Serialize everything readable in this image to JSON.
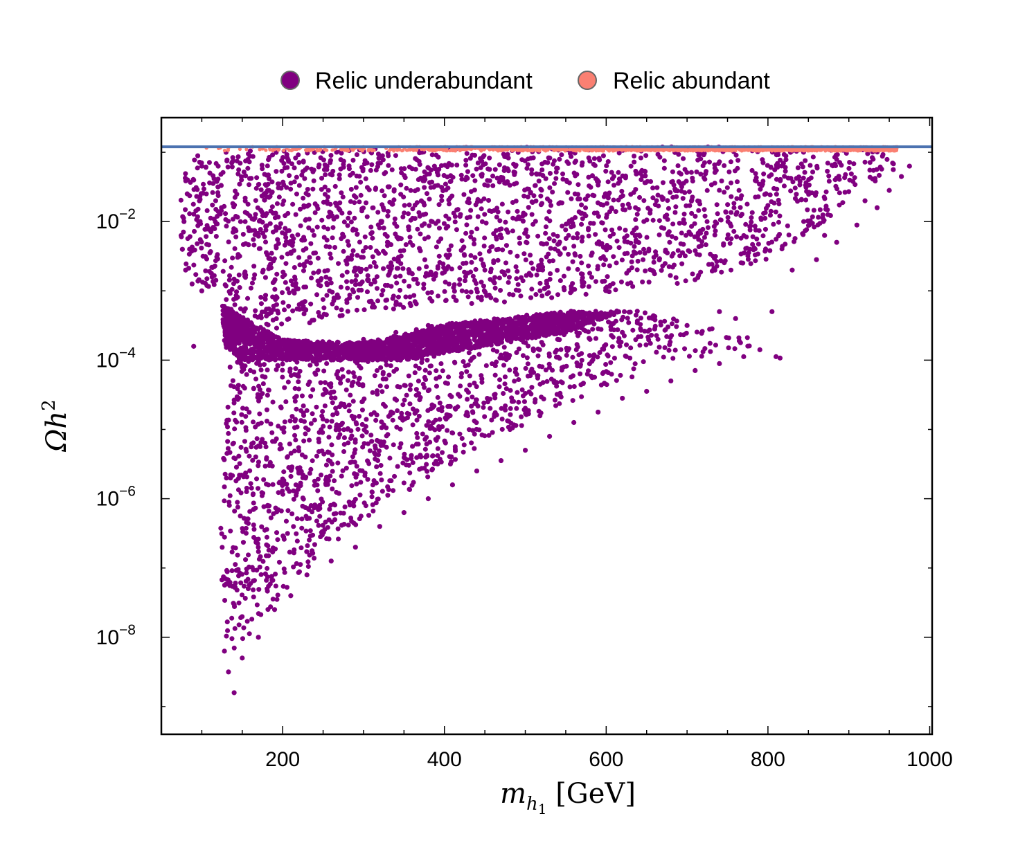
{
  "chart_data": {
    "type": "scatter",
    "xlabel": "m_{h_1} [GeV]",
    "ylabel": "Ωh^2",
    "xlim": [
      50,
      1003
    ],
    "ylim_log10": [
      -9.4,
      -0.5
    ],
    "y_scale": "log",
    "x_ticks": [
      200,
      400,
      600,
      800,
      1000
    ],
    "x_tick_labels": [
      "200",
      "400",
      "600",
      "800",
      "1000"
    ],
    "y_ticks_log10": [
      -8,
      -6,
      -4,
      -2
    ],
    "y_tick_labels": [
      {
        "base": "10",
        "exp": "−8"
      },
      {
        "base": "10",
        "exp": "−6"
      },
      {
        "base": "10",
        "exp": "−4"
      },
      {
        "base": "10",
        "exp": "−2"
      }
    ],
    "reference_line": {
      "y": 0.12,
      "color": "#4c72b0"
    },
    "legend": {
      "placement": "top-center",
      "entries": [
        {
          "label": "Relic underabundant",
          "color": "#800080"
        },
        {
          "label": "Relic abundant",
          "color": "#fa8072"
        }
      ]
    },
    "series": [
      {
        "name": "Relic underabundant",
        "color": "#800080",
        "regions": [
          {
            "desc": "main-band",
            "poly": [
              [
                75,
                -1.2
              ],
              [
                100,
                -1.05
              ],
              [
                200,
                -0.97
              ],
              [
                400,
                -0.93
              ],
              [
                600,
                -0.92
              ],
              [
                800,
                -0.92
              ],
              [
                950,
                -0.95
              ],
              [
                965,
                -1.1
              ],
              [
                940,
                -1.35
              ],
              [
                900,
                -1.7
              ],
              [
                860,
                -2.1
              ],
              [
                800,
                -2.55
              ],
              [
                700,
                -2.9
              ],
              [
                600,
                -3.05
              ],
              [
                500,
                -3.15
              ],
              [
                400,
                -3.2
              ],
              [
                300,
                -3.3
              ],
              [
                200,
                -3.55
              ],
              [
                150,
                -3.9
              ],
              [
                135,
                -4.2
              ],
              [
                128,
                -4.8
              ],
              [
                124,
                -5.5
              ],
              [
                123,
                -6.3
              ],
              [
                124,
                -7.2
              ],
              [
                127,
                -7.8
              ],
              [
                133,
                -8.2
              ],
              [
                145,
                -8.15
              ],
              [
                165,
                -7.9
              ],
              [
                200,
                -7.4
              ],
              [
                240,
                -6.9
              ],
              [
                300,
                -6.3
              ],
              [
                380,
                -5.7
              ],
              [
                460,
                -5.15
              ],
              [
                540,
                -4.7
              ],
              [
                620,
                -4.3
              ],
              [
                700,
                -4.0
              ],
              [
                760,
                -3.85
              ],
              [
                800,
                -3.8
              ],
              [
                760,
                -3.6
              ],
              [
                690,
                -3.4
              ],
              [
                620,
                -3.25
              ],
              [
                540,
                -3.3
              ],
              [
                460,
                -3.4
              ],
              [
                380,
                -3.5
              ],
              [
                300,
                -3.8
              ],
              [
                250,
                -3.9
              ],
              [
                200,
                -3.95
              ],
              [
                160,
                -3.95
              ],
              [
                130,
                -3.6
              ],
              [
                125,
                -3.0
              ],
              [
                122,
                -2.95
              ],
              [
                105,
                -2.95
              ],
              [
                90,
                -2.85
              ],
              [
                78,
                -2.6
              ],
              [
                74,
                -2.2
              ],
              [
                72,
                -1.6
              ]
            ]
          },
          {
            "desc": "gap-fill",
            "poly": [
              [
                125,
                -3.2
              ],
              [
                200,
                -3.7
              ],
              [
                300,
                -3.75
              ],
              [
                420,
                -3.45
              ],
              [
                550,
                -3.3
              ],
              [
                620,
                -3.3
              ],
              [
                550,
                -3.6
              ],
              [
                450,
                -3.8
              ],
              [
                350,
                -4.0
              ],
              [
                250,
                -4.0
              ],
              [
                150,
                -4.0
              ],
              [
                128,
                -3.8
              ]
            ]
          }
        ],
        "outliers": [
          [
            140,
            -8.8
          ],
          [
            133,
            -8.5
          ],
          [
            128,
            -8.2
          ],
          [
            150,
            -8.3
          ],
          [
            170,
            -8.0
          ],
          [
            190,
            -7.6
          ],
          [
            210,
            -7.4
          ],
          [
            230,
            -7.1
          ],
          [
            260,
            -6.9
          ],
          [
            290,
            -6.7
          ],
          [
            320,
            -6.4
          ],
          [
            350,
            -6.2
          ],
          [
            380,
            -6.0
          ],
          [
            410,
            -5.8
          ],
          [
            440,
            -5.6
          ],
          [
            470,
            -5.45
          ],
          [
            500,
            -5.3
          ],
          [
            530,
            -5.1
          ],
          [
            560,
            -4.9
          ],
          [
            590,
            -4.75
          ],
          [
            620,
            -4.55
          ],
          [
            650,
            -4.45
          ],
          [
            680,
            -4.3
          ],
          [
            710,
            -4.15
          ],
          [
            740,
            -4.05
          ],
          [
            770,
            -3.95
          ],
          [
            790,
            -3.85
          ],
          [
            810,
            -3.95
          ],
          [
            815,
            -3.97
          ],
          [
            805,
            -3.3
          ],
          [
            760,
            -3.4
          ],
          [
            740,
            -3.3
          ],
          [
            700,
            -3.5
          ],
          [
            660,
            -3.55
          ],
          [
            620,
            -3.6
          ],
          [
            580,
            -3.7
          ],
          [
            540,
            -3.7
          ],
          [
            500,
            -3.65
          ],
          [
            460,
            -3.6
          ],
          [
            420,
            -3.55
          ],
          [
            380,
            -3.5
          ],
          [
            340,
            -3.6
          ],
          [
            300,
            -3.7
          ],
          [
            260,
            -3.8
          ],
          [
            100,
            -3.0
          ],
          [
            88,
            -2.9
          ],
          [
            80,
            -2.7
          ],
          [
            76,
            -2.4
          ],
          [
            78,
            -2.0
          ],
          [
            82,
            -1.6
          ],
          [
            90,
            -1.4
          ],
          [
            100,
            -1.2
          ],
          [
            110,
            -1.3
          ],
          [
            120,
            -1.5
          ],
          [
            95,
            -1.05
          ],
          [
            130,
            -1.0
          ],
          [
            160,
            -0.98
          ],
          [
            300,
            -0.96
          ],
          [
            500,
            -0.95
          ],
          [
            700,
            -0.95
          ],
          [
            900,
            -0.96
          ],
          [
            930,
            -1.1
          ],
          [
            955,
            -1.25
          ],
          [
            975,
            -1.2
          ],
          [
            965,
            -1.35
          ],
          [
            950,
            -1.55
          ],
          [
            935,
            -1.8
          ],
          [
            910,
            -2.05
          ],
          [
            885,
            -2.3
          ],
          [
            860,
            -2.55
          ],
          [
            830,
            -2.7
          ],
          [
            870,
            -2.2
          ],
          [
            920,
            -1.7
          ],
          [
            90,
            -3.8
          ],
          [
            150,
            -4.1
          ],
          [
            160,
            -4.15
          ],
          [
            135,
            -4.1
          ]
        ]
      },
      {
        "name": "Relic abundant",
        "color": "#fa8072",
        "band": {
          "x_start": 100,
          "x_end": 960,
          "y_min": 0.105,
          "y_max": 0.12
        }
      }
    ]
  }
}
